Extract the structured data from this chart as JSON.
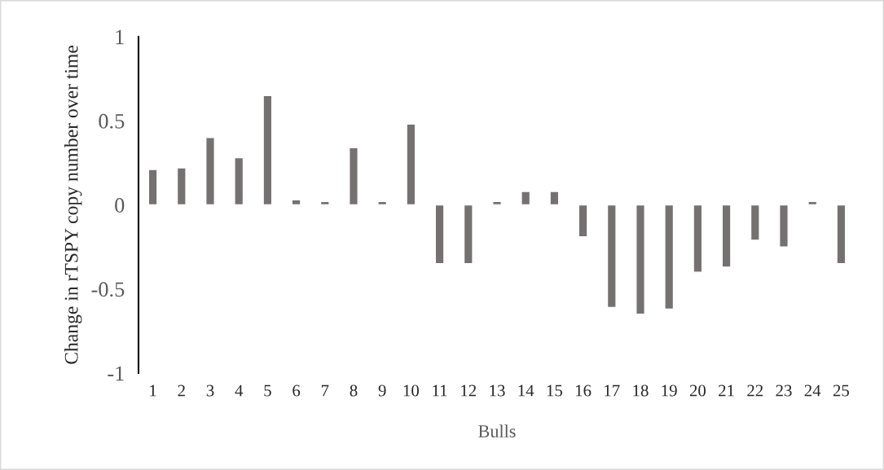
{
  "chart_data": {
    "type": "bar",
    "xlabel": "Bulls",
    "ylabel": "Change in rTSPY copy number over time",
    "categories": [
      "1",
      "2",
      "3",
      "4",
      "5",
      "6",
      "7",
      "8",
      "9",
      "10",
      "11",
      "12",
      "13",
      "14",
      "15",
      "16",
      "17",
      "18",
      "19",
      "20",
      "21",
      "22",
      "23",
      "24",
      "25"
    ],
    "values": [
      0.21,
      0.22,
      0.4,
      0.28,
      0.65,
      0.03,
      0.02,
      0.34,
      0.02,
      0.48,
      -0.35,
      -0.35,
      0.02,
      0.08,
      0.08,
      -0.19,
      -0.61,
      -0.65,
      -0.62,
      -0.4,
      -0.37,
      -0.21,
      -0.25,
      0.02,
      -0.35
    ],
    "color": "#767171",
    "ylim": [
      -1,
      1
    ],
    "yticks": [
      -1,
      -0.5,
      0,
      0.5,
      1
    ],
    "grid": false,
    "legend": false
  }
}
